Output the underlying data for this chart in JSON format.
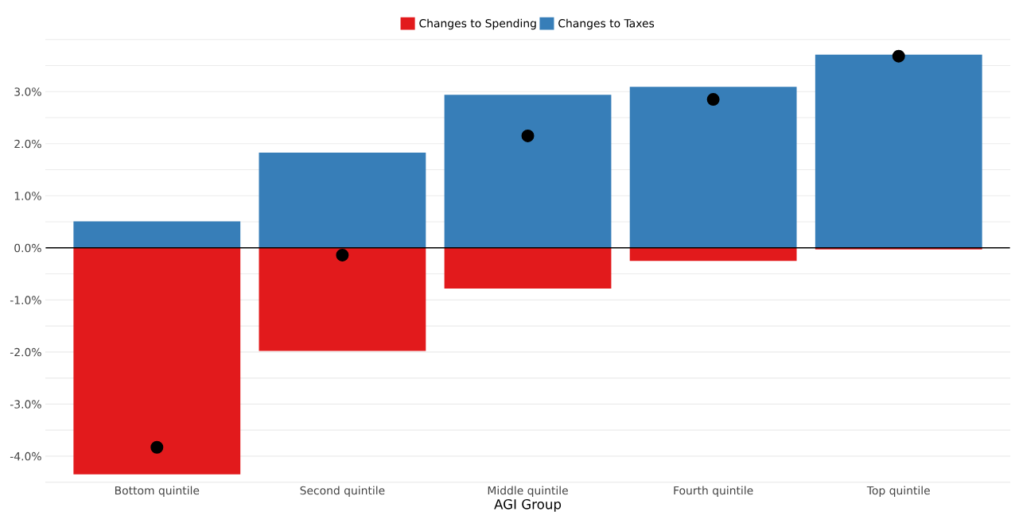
{
  "chart_data": {
    "type": "bar",
    "stacked": true,
    "xlabel": "AGI Group",
    "categories": [
      "Bottom quintile",
      "Second quintile",
      "Middle quintile",
      "Fourth quintile",
      "Top quintile"
    ],
    "series": [
      {
        "name": "Changes to Spending",
        "color": "#e21a1c",
        "values": [
          -4.35,
          -1.98,
          -0.78,
          -0.25,
          -0.03
        ]
      },
      {
        "name": "Changes to Taxes",
        "color": "#377eb8",
        "values": [
          0.51,
          1.83,
          2.94,
          3.09,
          3.71
        ]
      },
      {
        "type": "scatter",
        "color": "#000000",
        "x": [
          "Bottom quintile",
          "Second quintile",
          "Middle quintile",
          "Fourth quintile",
          "Top quintile"
        ],
        "values": [
          -3.83,
          -0.14,
          2.15,
          2.85,
          3.68
        ],
        "marker": "circle"
      }
    ],
    "ylim": [
      -4.5,
      4.0
    ],
    "yticks": [
      {
        "value": -4.5,
        "label": null
      },
      {
        "value": -4,
        "label": "-4.0%"
      },
      {
        "value": -3.5,
        "label": null
      },
      {
        "value": -3,
        "label": "-3.0%"
      },
      {
        "value": -2.5,
        "label": null
      },
      {
        "value": -2,
        "label": "-2.0%"
      },
      {
        "value": -1.5,
        "label": null
      },
      {
        "value": -1,
        "label": "-1.0%"
      },
      {
        "value": -0.5,
        "label": null
      },
      {
        "value": 0,
        "label": "0.0%"
      },
      {
        "value": 0.5,
        "label": null
      },
      {
        "value": 1,
        "label": "1.0%"
      },
      {
        "value": 1.5,
        "label": null
      },
      {
        "value": 2,
        "label": "2.0%"
      },
      {
        "value": 2.5,
        "label": null
      },
      {
        "value": 3,
        "label": "3.0%"
      },
      {
        "value": 3.5,
        "label": null
      },
      {
        "value": 4,
        "label": null
      }
    ],
    "ref_lines": [
      {
        "axis": "y",
        "value": 0,
        "color": "#000000"
      }
    ],
    "grid": "y",
    "legend": "top"
  }
}
